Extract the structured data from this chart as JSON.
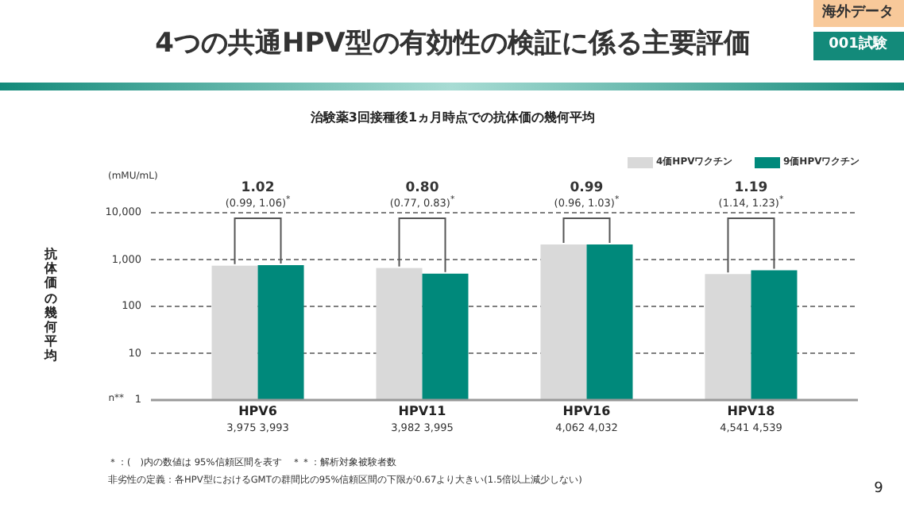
{
  "chart_data": {
    "type": "bar",
    "title": "4つの共通HPV型の有効性の検証に係る主要評価",
    "subtitle": "治験薬3回接種後1ヵ月時点での抗体価の幾何平均",
    "ylabel": "抗体価の幾何平均",
    "categories": [
      "HPV6",
      "HPV11",
      "HPV16",
      "HPV18"
    ],
    "series": [
      {
        "name": "4価HPVワクチン",
        "color": "#d9d9d9",
        "values": [
          740,
          660,
          2100,
          490
        ]
      },
      {
        "name": "9価HPVワクチン",
        "color": "#00897b",
        "values": [
          760,
          500,
          2100,
          590
        ]
      }
    ],
    "log": true,
    "ylim": [
      1,
      10000
    ],
    "yticks": [
      1,
      10,
      100,
      {
        "value": 1000,
        "label": "1,000"
      },
      {
        "value": 10000,
        "label": "10,000"
      }
    ],
    "grid": "y",
    "legend": "top right",
    "annotations": [
      "海外データ",
      "001試験",
      "(mMU/mL)",
      "n**",
      "＊：(　)内の数値は 95%信頼区間を表す　＊＊：解析対象被験者数",
      "非劣性の定義：各HPV型におけるGMTの群間比の95%信頼区間の下限が0.67より大きい(1.5倍以上減少しない)",
      "9",
      "1.02",
      "(0.99, 1.06)$^{*}$",
      "3,975 3,993",
      "0.80",
      "(0.77, 0.83)$^{*}$",
      "3,982 3,995",
      "0.99",
      "(0.96, 1.03)$^{*}$",
      "4,062 4,032",
      "1.19",
      "(1.14, 1.23)$^{*}$",
      "4,541 4,539"
    ]
  }
}
